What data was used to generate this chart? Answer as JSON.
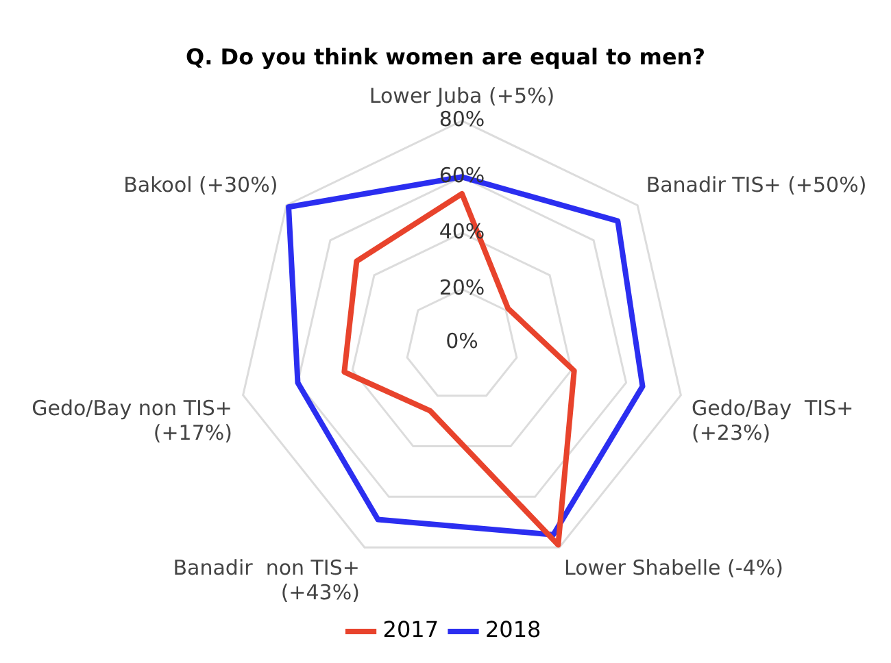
{
  "chart_data": {
    "type": "radar",
    "title": "Q. Do you think women are equal to men?",
    "categories": [
      "Lower Juba (+5%)",
      "Banadir TIS+ (+50%)",
      "Gedo/Bay  TIS+ (+23%)",
      "Lower Shabelle (-4%)",
      "Banadir  non TIS+ (+43%)",
      "Gedo/Bay non TIS+ (+17%)",
      "Bakool (+30%)"
    ],
    "series": [
      {
        "name": "2017",
        "color": "#e8432c",
        "values": [
          54,
          21,
          41,
          79,
          26,
          43,
          48
        ]
      },
      {
        "name": "2018",
        "color": "#2b2ef0",
        "values": [
          60,
          71,
          66,
          75,
          69,
          60,
          79
        ]
      }
    ],
    "ylim": [
      0,
      80
    ],
    "yticks": [
      {
        "value": 0,
        "label": "0%"
      },
      {
        "value": 20,
        "label": "20%"
      },
      {
        "value": 40,
        "label": "40%"
      },
      {
        "value": 60,
        "label": "60%"
      },
      {
        "value": 80,
        "label": "80%"
      }
    ],
    "grid": true,
    "legend": "bottom",
    "marker": "none",
    "line_style": "solid"
  }
}
